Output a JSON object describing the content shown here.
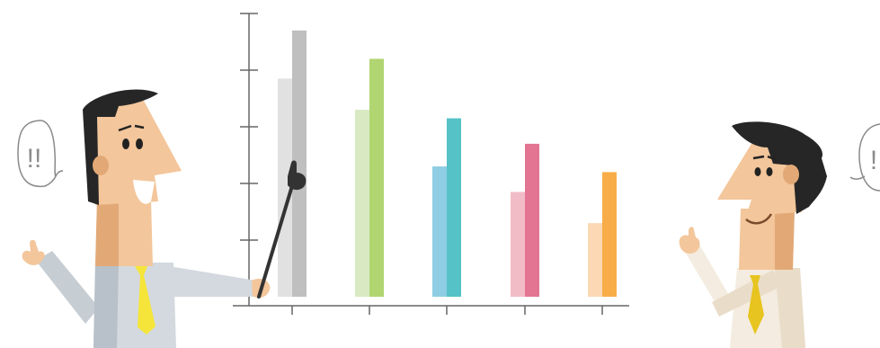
{
  "speech_left": {
    "text": "!!"
  },
  "speech_right": {
    "text": "!"
  },
  "colors": {
    "skin": "#f3c69b",
    "skin_shade": "#e2a977",
    "hair": "#262626",
    "shirt_left": "#d3d9de",
    "shirt_left_shade": "#b7c0c8",
    "shirt_right": "#f4ece0",
    "tie": "#f5e53a",
    "tie_right": "#e7c41f",
    "axis": "#666666",
    "pointer": "#333333"
  },
  "chart_data": {
    "type": "bar",
    "categories": [
      "",
      "",
      "",
      "",
      ""
    ],
    "ylim": [
      0,
      5
    ],
    "grid": false,
    "legend": "none",
    "series": [
      {
        "values": [
          3.85,
          3.3,
          2.3,
          1.85,
          1.3
        ],
        "colors": [
          "#e1e1e1",
          "#d9eac2",
          "#8ecde3",
          "#f2bcc6",
          "#fcd8b4"
        ]
      },
      {
        "values": [
          4.7,
          4.2,
          3.15,
          2.7,
          2.2
        ],
        "colors": [
          "#bfbfbf",
          "#b0d571",
          "#55c2c8",
          "#e37593",
          "#f8ad48"
        ]
      }
    ]
  }
}
